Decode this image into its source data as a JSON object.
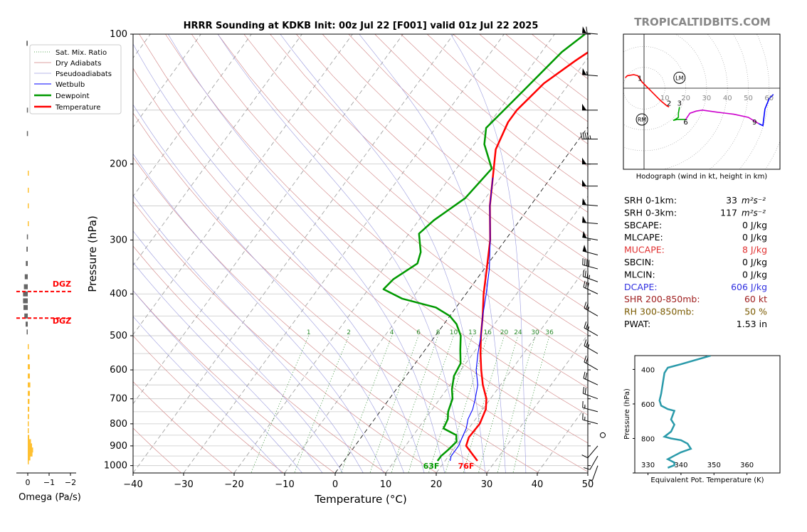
{
  "title": "HRRR Sounding at KDKB Init: 00z Jul 22 [F001] valid 01z Jul 22 2025",
  "watermark": "TROPICALTIDBITS.COM",
  "skewt": {
    "xlabel": "Temperature (°C)",
    "ylabel": "Pressure (hPa)",
    "xlim": [
      -40,
      50
    ],
    "ylim": [
      1040,
      100
    ],
    "x_ticks": [
      "−40",
      "−30",
      "−20",
      "−10",
      "0",
      "10",
      "20",
      "30",
      "40",
      "50"
    ],
    "x_tick_values": [
      -40,
      -30,
      -20,
      -10,
      0,
      10,
      20,
      30,
      40,
      50
    ],
    "p_ticks": [
      100,
      200,
      300,
      400,
      500,
      600,
      700,
      800,
      900,
      1000
    ],
    "p_tick_labels": [
      "100",
      "200",
      "300",
      "400",
      "500",
      "600",
      "700",
      "800",
      "900",
      "1000"
    ],
    "mixing_ratio_labels": [
      "1",
      "2",
      "4",
      "6",
      "8",
      "10",
      "13",
      "16",
      "20",
      "24",
      "30",
      "36"
    ],
    "legend": [
      "Sat. Mix. Ratio",
      "Dry Adiabats",
      "Pseudoadiabats",
      "Wetbulb",
      "Dewpoint",
      "Temperature"
    ],
    "sfc_temp_label": "76F",
    "sfc_dew_label": "63F"
  },
  "chart_data": {
    "type": "line",
    "series": [
      {
        "name": "Temperature",
        "color": "#ff0000",
        "points": [
          [
            26.4,
            975
          ],
          [
            22,
            900
          ],
          [
            21.3,
            860
          ],
          [
            21.5,
            800
          ],
          [
            20.6,
            740
          ],
          [
            19.2,
            700
          ],
          [
            16.5,
            650
          ],
          [
            14,
            600
          ],
          [
            11.5,
            550
          ],
          [
            9,
            500
          ],
          [
            6.5,
            450
          ],
          [
            3.5,
            400
          ],
          [
            0.5,
            350
          ],
          [
            -3,
            300
          ],
          [
            -8,
            250
          ],
          [
            -11.5,
            215
          ],
          [
            -15,
            185
          ],
          [
            -16.5,
            160
          ],
          [
            -16.5,
            150
          ],
          [
            -15,
            130
          ],
          [
            -12,
            115
          ],
          [
            -8,
            100
          ]
        ]
      },
      {
        "name": "Dewpoint",
        "color": "#009900",
        "points": [
          [
            18.5,
            975
          ],
          [
            18.5,
            950
          ],
          [
            19,
            920
          ],
          [
            19.5,
            880
          ],
          [
            18.5,
            850
          ],
          [
            15,
            820
          ],
          [
            14.5,
            780
          ],
          [
            13.5,
            750
          ],
          [
            12.5,
            700
          ],
          [
            11,
            665
          ],
          [
            9.5,
            620
          ],
          [
            9,
            580
          ],
          [
            7,
            540
          ],
          [
            5,
            500
          ],
          [
            2.5,
            470
          ],
          [
            0,
            450
          ],
          [
            -4,
            430
          ],
          [
            -12,
            410
          ],
          [
            -17,
            390
          ],
          [
            -16.5,
            370
          ],
          [
            -14,
            340
          ],
          [
            -15,
            320
          ],
          [
            -18,
            290
          ],
          [
            -17,
            270
          ],
          [
            -14,
            240
          ],
          [
            -13,
            205
          ],
          [
            -18,
            180
          ],
          [
            -20,
            165
          ],
          [
            -18,
            135
          ],
          [
            -16,
            110
          ],
          [
            -14,
            100
          ]
        ]
      },
      {
        "name": "Wetbulb",
        "color": "#0000ff",
        "points": [
          [
            21,
            975
          ],
          [
            20.5,
            950
          ],
          [
            20.5,
            900
          ],
          [
            20,
            860
          ],
          [
            19.5,
            820
          ],
          [
            18.5,
            780
          ],
          [
            18,
            740
          ],
          [
            17,
            700
          ],
          [
            15.5,
            650
          ],
          [
            13,
            600
          ],
          [
            11,
            550
          ],
          [
            9,
            500
          ],
          [
            6.5,
            450
          ],
          [
            4,
            400
          ],
          [
            1,
            350
          ],
          [
            -3,
            300
          ],
          [
            -8,
            250
          ],
          [
            -11.5,
            215
          ]
        ]
      }
    ],
    "omega": {
      "xlabel": "Omega (Pa/s)",
      "ticks": [
        "0",
        "−1",
        "−2"
      ],
      "dgz_upper_label": "DGZ",
      "dgz_lower_label": "DGZ",
      "dgz_upper_p": 395,
      "dgz_lower_p": 455,
      "bars": [
        {
          "p": 105,
          "v": 0.06
        },
        {
          "p": 150,
          "v": 0.04
        },
        {
          "p": 170,
          "v": 0.04
        },
        {
          "p": 210,
          "v": -0.03
        },
        {
          "p": 230,
          "v": -0.05
        },
        {
          "p": 250,
          "v": -0.05
        },
        {
          "p": 275,
          "v": -0.04
        },
        {
          "p": 295,
          "v": 0.04
        },
        {
          "p": 315,
          "v": 0.06
        },
        {
          "p": 340,
          "v": 0.09
        },
        {
          "p": 365,
          "v": 0.14
        },
        {
          "p": 385,
          "v": 0.18
        },
        {
          "p": 400,
          "v": 0.22
        },
        {
          "p": 415,
          "v": 0.22
        },
        {
          "p": 430,
          "v": 0.2
        },
        {
          "p": 450,
          "v": 0.16
        },
        {
          "p": 470,
          "v": 0.1
        },
        {
          "p": 490,
          "v": 0.05
        },
        {
          "p": 530,
          "v": -0.05
        },
        {
          "p": 560,
          "v": -0.08
        },
        {
          "p": 590,
          "v": -0.1
        },
        {
          "p": 620,
          "v": -0.1
        },
        {
          "p": 650,
          "v": -0.12
        },
        {
          "p": 680,
          "v": -0.1
        },
        {
          "p": 710,
          "v": -0.08
        },
        {
          "p": 740,
          "v": -0.07
        },
        {
          "p": 770,
          "v": -0.06
        },
        {
          "p": 800,
          "v": -0.05
        },
        {
          "p": 830,
          "v": -0.05
        },
        {
          "p": 860,
          "v": -0.07
        },
        {
          "p": 880,
          "v": -0.15
        },
        {
          "p": 900,
          "v": -0.2
        },
        {
          "p": 920,
          "v": -0.25
        },
        {
          "p": 940,
          "v": -0.22
        },
        {
          "p": 960,
          "v": -0.12
        },
        {
          "p": 980,
          "v": -0.05
        }
      ]
    },
    "hodograph": {
      "caption": "Hodograph (wind in kt, height in km)",
      "ring_labels": [
        "10",
        "20",
        "30",
        "40",
        "50",
        "60"
      ],
      "height_labels": [
        {
          "label": "1",
          "u": -2,
          "v": 5
        },
        {
          "label": "2",
          "u": 12,
          "v": -7
        },
        {
          "label": "3",
          "u": 17,
          "v": -7
        },
        {
          "label": "6",
          "u": 20,
          "v": -16
        },
        {
          "label": "9",
          "u": 53,
          "v": -16
        }
      ],
      "storm_markers": [
        {
          "label": "LM",
          "u": 17,
          "v": 5
        },
        {
          "label": "RM",
          "u": -1,
          "v": -15
        }
      ],
      "segments": [
        {
          "color": "#ff0000",
          "points": [
            [
              -9,
              5
            ],
            [
              -8,
              6
            ],
            [
              -5,
              6.5
            ],
            [
              -3,
              6
            ],
            [
              -1,
              3
            ],
            [
              2,
              0
            ],
            [
              5,
              -3
            ],
            [
              8,
              -6
            ],
            [
              11,
              -8.5
            ],
            [
              12,
              -9
            ]
          ]
        },
        {
          "color": "#00aa00",
          "points": [
            [
              17,
              -9
            ],
            [
              16.5,
              -12
            ],
            [
              16.5,
              -14
            ],
            [
              15,
              -15
            ],
            [
              14,
              -15.5
            ],
            [
              16,
              -15
            ],
            [
              20,
              -15
            ]
          ]
        },
        {
          "color": "#cc00cc",
          "points": [
            [
              20,
              -15
            ],
            [
              22,
              -12
            ],
            [
              25,
              -11
            ],
            [
              28,
              -10.5
            ],
            [
              35,
              -11.5
            ],
            [
              43,
              -12.5
            ],
            [
              50,
              -14
            ],
            [
              55,
              -17
            ]
          ]
        },
        {
          "color": "#0000ff",
          "points": [
            [
              55,
              -17
            ],
            [
              57,
              -18
            ],
            [
              58,
              -10
            ],
            [
              60,
              -5
            ],
            [
              62,
              -3
            ]
          ]
        }
      ]
    },
    "theta_e": {
      "ylabel": "Pressure (hPa)",
      "xlabel": "Equivalent Pot. Temperature (K)",
      "x_ticks": [
        "330",
        "340",
        "350",
        "360"
      ],
      "x_tick_values": [
        330,
        340,
        350,
        360
      ],
      "y_ticks": [
        "400",
        "600",
        "800"
      ],
      "y_tick_values": [
        400,
        600,
        800
      ],
      "xlim": [
        326,
        370
      ],
      "ylim": [
        1000,
        320
      ],
      "points": [
        [
          349,
          320
        ],
        [
          340,
          370
        ],
        [
          336,
          390
        ],
        [
          335,
          420
        ],
        [
          334.5,
          480
        ],
        [
          334,
          540
        ],
        [
          333.5,
          580
        ],
        [
          334,
          610
        ],
        [
          336,
          630
        ],
        [
          338,
          640
        ],
        [
          337,
          690
        ],
        [
          338,
          720
        ],
        [
          337,
          760
        ],
        [
          335,
          790
        ],
        [
          337,
          800
        ],
        [
          340,
          810
        ],
        [
          342,
          830
        ],
        [
          343,
          860
        ],
        [
          340,
          880
        ],
        [
          338,
          900
        ],
        [
          336,
          920
        ],
        [
          338,
          940
        ],
        [
          338,
          955
        ],
        [
          336,
          970
        ]
      ]
    }
  },
  "winds": [
    {
      "p": 100,
      "speed": 60,
      "dir": 275
    },
    {
      "p": 125,
      "speed": 55,
      "dir": 275
    },
    {
      "p": 150,
      "speed": 50,
      "dir": 270
    },
    {
      "p": 175,
      "speed": 45,
      "dir": 270
    },
    {
      "p": 200,
      "speed": 50,
      "dir": 270
    },
    {
      "p": 225,
      "speed": 50,
      "dir": 270
    },
    {
      "p": 250,
      "speed": 50,
      "dir": 275
    },
    {
      "p": 275,
      "speed": 50,
      "dir": 275
    },
    {
      "p": 300,
      "speed": 50,
      "dir": 280
    },
    {
      "p": 325,
      "speed": 50,
      "dir": 285
    },
    {
      "p": 350,
      "speed": 40,
      "dir": 285
    },
    {
      "p": 375,
      "speed": 35,
      "dir": 290
    },
    {
      "p": 400,
      "speed": 30,
      "dir": 295
    },
    {
      "p": 450,
      "speed": 25,
      "dir": 300
    },
    {
      "p": 500,
      "speed": 25,
      "dir": 300
    },
    {
      "p": 550,
      "speed": 25,
      "dir": 300
    },
    {
      "p": 600,
      "speed": 20,
      "dir": 300
    },
    {
      "p": 650,
      "speed": 20,
      "dir": 295
    },
    {
      "p": 700,
      "speed": 20,
      "dir": 290
    },
    {
      "p": 750,
      "speed": 15,
      "dir": 285
    },
    {
      "p": 800,
      "speed": 15,
      "dir": 285
    },
    {
      "p": 850,
      "speed": 0,
      "dir": 0
    },
    {
      "p": 900,
      "speed": 10,
      "dir": 220
    },
    {
      "p": 950,
      "speed": 10,
      "dir": 210
    },
    {
      "p": 1000,
      "speed": 5,
      "dir": 200
    }
  ],
  "indices": [
    {
      "label": "SRH 0-1km:",
      "value": "33",
      "unit": "m²s⁻²",
      "color": "#000000"
    },
    {
      "label": "SRH 0-3km:",
      "value": "117",
      "unit": "m²s⁻²",
      "color": "#000000"
    },
    {
      "label": "SBCAPE:",
      "value": "0 J/kg",
      "unit": "",
      "color": "#000000"
    },
    {
      "label": "MLCAPE:",
      "value": "0 J/kg",
      "unit": "",
      "color": "#000000"
    },
    {
      "label": "MUCAPE:",
      "value": "8 J/kg",
      "unit": "",
      "color": "#e03030"
    },
    {
      "label": "SBCIN:",
      "value": "0 J/kg",
      "unit": "",
      "color": "#000000"
    },
    {
      "label": "MLCIN:",
      "value": "0 J/kg",
      "unit": "",
      "color": "#000000"
    },
    {
      "label": "DCAPE:",
      "value": "606 J/kg",
      "unit": "",
      "color": "#3030e0"
    },
    {
      "label": "SHR 200-850mb:",
      "value": "60 kt",
      "unit": "",
      "color": "#a02020"
    },
    {
      "label": "RH 300-850mb:",
      "value": "50 %",
      "unit": "",
      "color": "#7a5a00"
    },
    {
      "label": "PWAT:",
      "value": "1.53 in",
      "unit": "",
      "color": "#000000"
    }
  ]
}
